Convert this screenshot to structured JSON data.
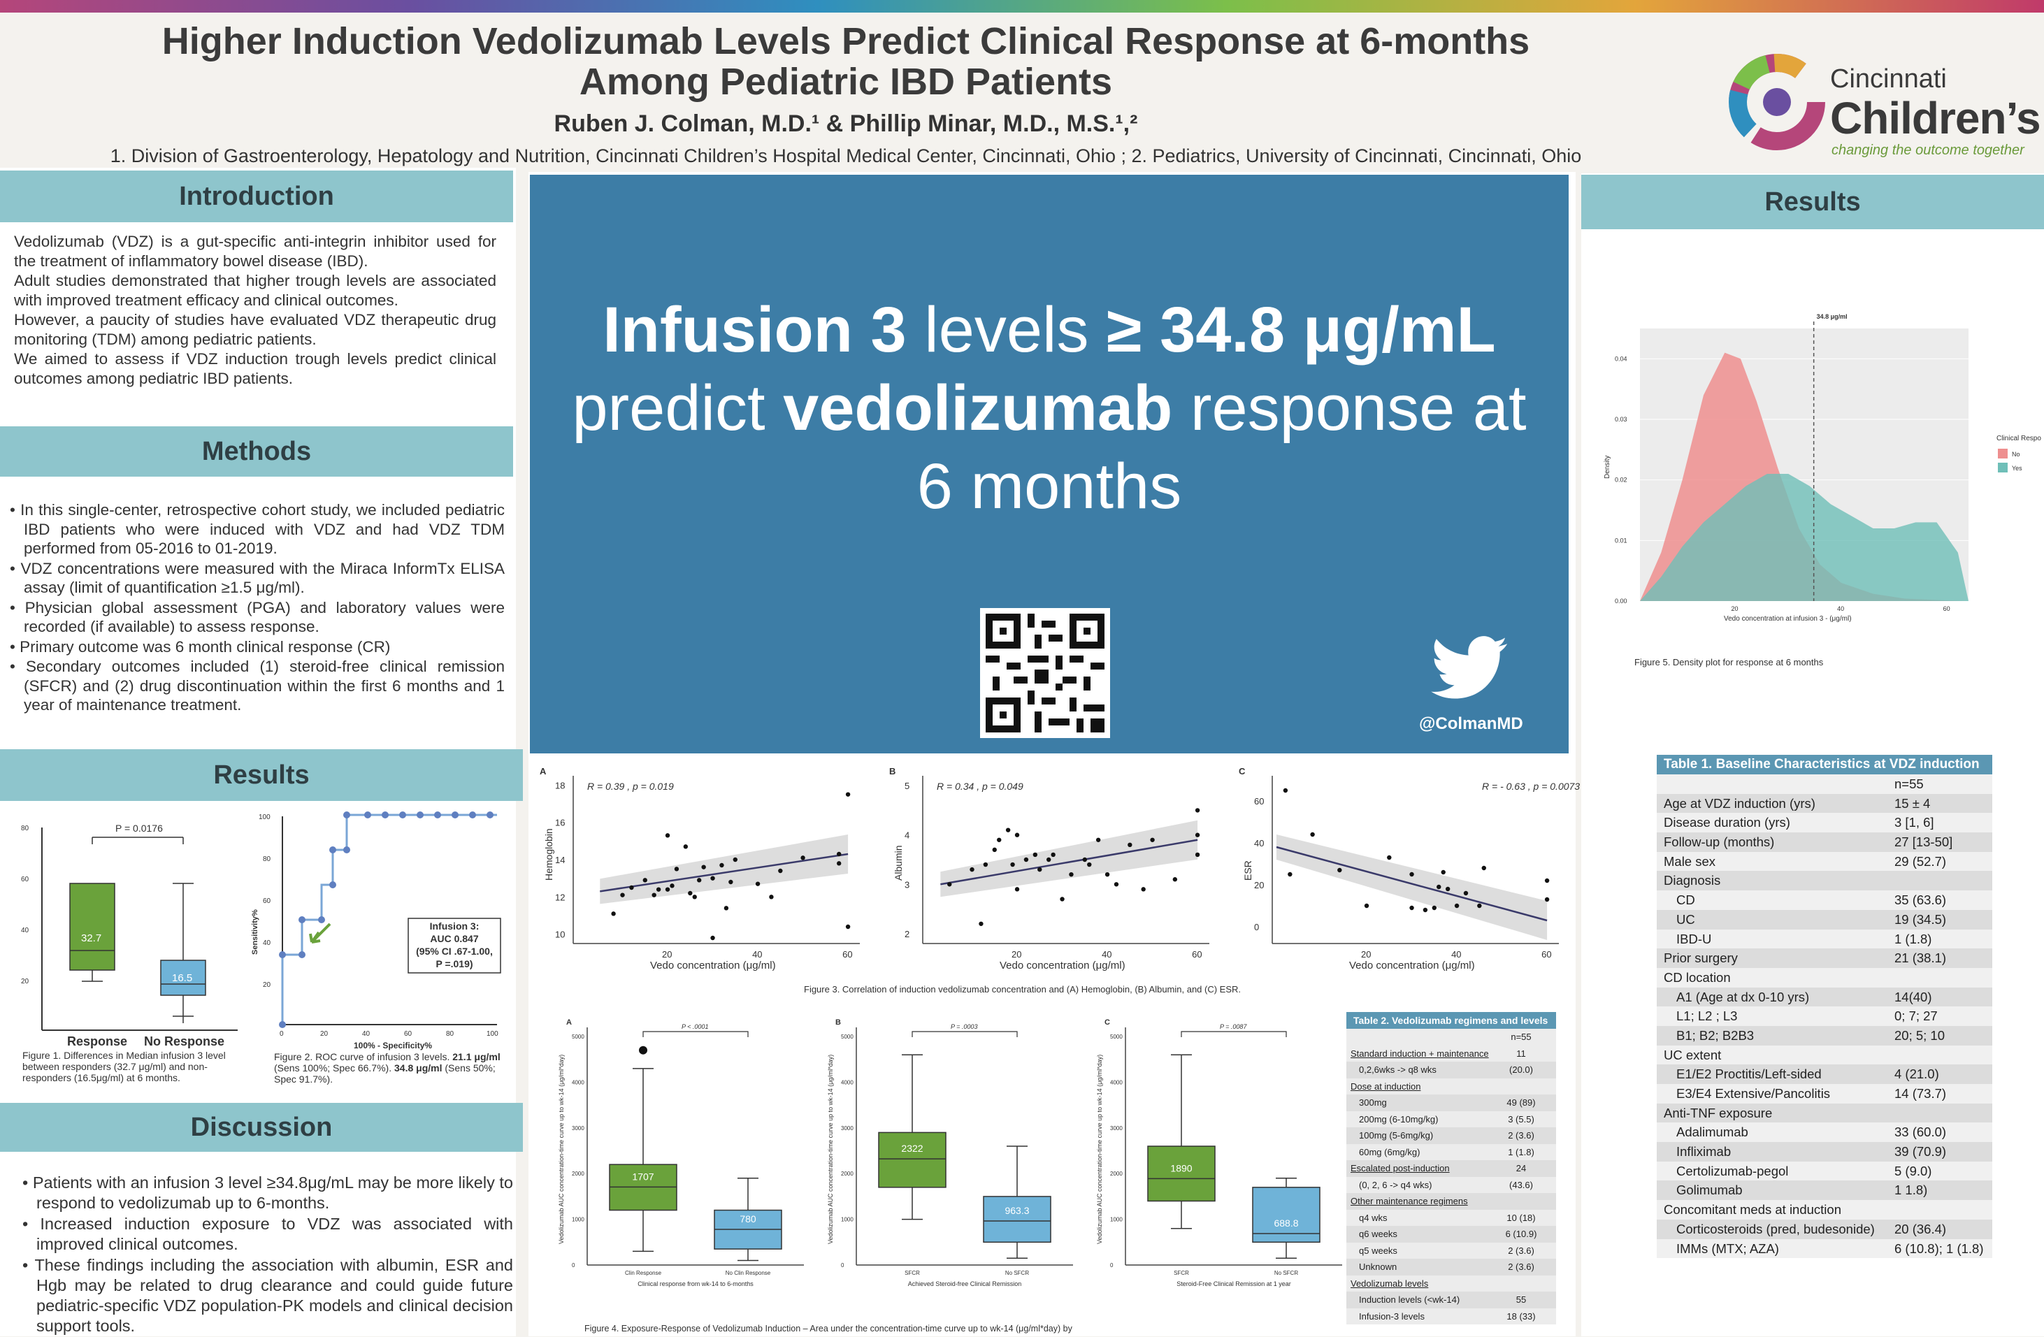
{
  "header": {
    "title_line1": "Higher Induction Vedolizumab Levels Predict Clinical Response at 6-months",
    "title_line2": "Among Pediatric IBD Patients",
    "authors": "Ruben J. Colman, M.D.¹ & Phillip Minar, M.D., M.S.¹,²",
    "affiliations": "1. Division of Gastroenterology, Hepatology and Nutrition, Cincinnati Children’s Hospital Medical Center, Cincinnati, Ohio ; 2. Pediatrics, University of Cincinnati, Cincinnati, Ohio",
    "logo_line1": "Cincinnati",
    "logo_line2": "Children’s",
    "logo_tagline": "changing the outcome together"
  },
  "introduction": {
    "heading": "Introduction",
    "p1": "Vedolizumab (VDZ) is a gut-specific anti-integrin inhibitor used for the treatment of inflammatory bowel disease (IBD).",
    "p2": "Adult studies demonstrated that higher trough levels are associated with improved treatment efficacy and clinical outcomes.",
    "p3": "However, a paucity of studies have evaluated VDZ therapeutic drug monitoring (TDM) among pediatric patients.",
    "p4": "We aimed to assess if VDZ induction trough levels predict clinical outcomes among pediatric IBD patients."
  },
  "methods": {
    "heading": "Methods",
    "items": [
      "In this single-center, retrospective cohort study, we included pediatric IBD patients who were induced with VDZ and had VDZ TDM performed from 05-2016 to 01-2019.",
      "VDZ concentrations were measured with the Miraca InformTx ELISA assay (limit of quantification ≥1.5 μg/ml).",
      "Physician global assessment (PGA) and laboratory values were recorded (if available) to assess response.",
      "Primary outcome was 6 month clinical response (CR)",
      "Secondary outcomes included (1) steroid-free clinical remission (SFCR) and (2) drug discontinuation within the first 6 months and 1 year of maintenance treatment."
    ]
  },
  "results_left": {
    "heading": "Results",
    "fig1": {
      "p_value": "P = 0.0176",
      "label_response": "Response",
      "label_no_response": "No Response",
      "median_response": "32.7",
      "median_no_response": "16.5",
      "caption": "Figure 1. Differences in Median infusion 3 level between responders (32.7 μg/ml) and non-responders (16.5μg/ml) at 6 months."
    },
    "fig2": {
      "xlabel": "100% - Specificity%",
      "ylabel": "Sensitivity%",
      "box_line1": "Infusion 3:",
      "box_line2": "AUC 0.847",
      "box_line3": "(95% CI .67-1.00,",
      "box_line4": "P =.019)",
      "caption_a": "Figure 2. ROC curve of infusion 3 levels.",
      "caption_b": "21.1 μg/ml",
      "caption_c": "(Sens 100%; Spec 66.7%).",
      "caption_d": "34.8 μg/ml",
      "caption_e": "(Sens 50%; Spec 91.7%)."
    }
  },
  "discussion": {
    "heading": "Discussion",
    "items": [
      "Patients with an infusion 3 level ≥34.8μg/mL may be more likely to respond to vedolizumab up to 6-months.",
      "Increased induction exposure to VDZ was associated with improved clinical outcomes.",
      "These findings including the association with albumin, ESR and Hgb may be related to drug clearance and could guide future pediatric-specific VDZ population-PK models and clinical decision support tools."
    ]
  },
  "highlight": {
    "line1_a": "Infusion 3",
    "line1_b": " levels ",
    "line1_c": "≥ 34.8 μg/mL",
    "line2_a": "predict ",
    "line2_b": "vedolizumab",
    "line2_c": " response at",
    "line3": "6 months",
    "twitter_handle": "@ColmanMD"
  },
  "figure3": {
    "caption": "Figure 3. Correlation of induction vedolizumab concentration and (A) Hemoglobin, (B) Albumin, and (C) ESR.",
    "xlabel": "Vedo concentration (μg/ml)",
    "panels": [
      {
        "letter": "A",
        "ylabel": "Hemoglobin",
        "stat": "R = 0.39 , p = 0.019",
        "yticks": [
          "18",
          "16",
          "14",
          "12",
          "10"
        ],
        "xticks": [
          "20",
          "40",
          "60"
        ]
      },
      {
        "letter": "B",
        "ylabel": "Albumin",
        "stat": "R = 0.34 , p = 0.049",
        "yticks": [
          "5",
          "4",
          "3",
          "2"
        ],
        "xticks": [
          "20",
          "40",
          "60"
        ]
      },
      {
        "letter": "C",
        "ylabel": "ESR",
        "stat": "R = - 0.63 , p = 0.0073",
        "yticks": [
          "60",
          "40",
          "20",
          "0"
        ],
        "xticks": [
          "20",
          "40",
          "60"
        ]
      }
    ]
  },
  "figure4": {
    "caption": "Figure 4. Exposure-Response of Vedolizumab Induction – Area under the concentration-time curve up to wk-14 (μg/ml*day) by",
    "ylabel": "Vedolizumab AUC concentration-time curve up to wk-14 (μg/ml*day)",
    "panels": [
      {
        "letter": "A",
        "p": "P < .0001",
        "med1": "1707",
        "med2": "780",
        "cat1": "Clin Response",
        "cat2": "No Clin Response",
        "xlabel": "Clinical response from wk-14 to 6-months"
      },
      {
        "letter": "B",
        "p": "P = .0003",
        "med1": "2322",
        "med2": "963.3",
        "cat1": "SFCR",
        "cat2": "No SFCR",
        "xlabel": "Achieved Steroid-free Clinical Remission"
      },
      {
        "letter": "C",
        "p": "P = .0087",
        "med1": "1890",
        "med2": "688.8",
        "cat1": "SFCR",
        "cat2": "No SFCR",
        "xlabel": "Steroid-Free Clinical Remission at 1 year"
      }
    ]
  },
  "table2": {
    "title": "Table 2. Vedolizumab regimens and levels",
    "n": "n=55",
    "rows": [
      [
        "Standard induction + maintenance",
        "11"
      ],
      [
        "0,2,6wks -> q8 wks",
        "(20.0)"
      ],
      [
        "Dose at induction",
        ""
      ],
      [
        "300mg",
        "49 (89)"
      ],
      [
        "200mg (6-10mg/kg)",
        "3 (5.5)"
      ],
      [
        "100mg (5-6mg/kg)",
        "2 (3.6)"
      ],
      [
        "60mg (6mg/kg)",
        "1 (1.8)"
      ],
      [
        "Escalated post-induction",
        "24"
      ],
      [
        "(0, 2, 6 -> q4 wks)",
        "(43.6)"
      ],
      [
        "Other maintenance regimens",
        ""
      ],
      [
        "q4 wks",
        "10 (18)"
      ],
      [
        "q6 weeks",
        "6 (10.9)"
      ],
      [
        "q5 weeks",
        "2 (3.6)"
      ],
      [
        "Unknown",
        "2 (3.6)"
      ],
      [
        "Vedolizumab levels",
        ""
      ],
      [
        "Induction levels (<wk-14)",
        "55"
      ],
      [
        "Infusion-3 levels",
        "18 (33)"
      ]
    ]
  },
  "results_right": {
    "heading": "Results",
    "fig5": {
      "caption": "Figure 5. Density plot for response at 6 months",
      "xlabel": "Vedo concentration at infusion 3 - (μg/ml)",
      "ylabel": "Density",
      "threshold_label": "34.8 μg/ml",
      "legend_title": "Clinical Respo",
      "legend_no": "No",
      "legend_yes": "Yes",
      "yticks": [
        "0.04",
        "0.03",
        "0.02",
        "0.01",
        "0.00"
      ],
      "xticks": [
        "20",
        "40",
        "60"
      ]
    },
    "table1": {
      "title": "Table 1. Baseline Characteristics at VDZ induction",
      "n": "n=55",
      "rows": [
        [
          "Age at VDZ induction (yrs)",
          "15 ± 4"
        ],
        [
          "Disease duration (yrs)",
          "3 [1, 6]"
        ],
        [
          "Follow-up (months)",
          "27 [13-50]"
        ],
        [
          "Male sex",
          "29 (52.7)"
        ],
        [
          "Diagnosis",
          ""
        ],
        [
          "CD",
          "35 (63.6)"
        ],
        [
          "UC",
          "19 (34.5)"
        ],
        [
          "IBD-U",
          "1 (1.8)"
        ],
        [
          "Prior surgery",
          "21 (38.1)"
        ],
        [
          "CD location",
          ""
        ],
        [
          "A1 (Age at dx 0-10 yrs)",
          "14(40)"
        ],
        [
          "L1; L2 ; L3",
          "0; 7; 27"
        ],
        [
          "B1; B2; B2B3",
          "20; 5; 10"
        ],
        [
          "UC extent",
          ""
        ],
        [
          "E1/E2 Proctitis/Left-sided",
          "4 (21.0)"
        ],
        [
          "E3/E4 Extensive/Pancolitis",
          "14 (73.7)"
        ],
        [
          "Anti-TNF exposure",
          ""
        ],
        [
          "Adalimumab",
          "33 (60.0)"
        ],
        [
          "Infliximab",
          "39 (70.9)"
        ],
        [
          "Certolizumab-pegol",
          "5 (9.0)"
        ],
        [
          "Golimumab",
          "1 1.8)"
        ],
        [
          "Concomitant meds at induction",
          ""
        ],
        [
          "Corticosteroids (pred, budesonide)",
          "20 (36.4)"
        ],
        [
          "IMMs (MTX; AZA)",
          "6 (10.8); 1 (1.8)"
        ]
      ]
    }
  },
  "colors": {
    "section_header": "#8ec5cc",
    "highlight_bg": "#3d7da6",
    "response_green": "#6aa23b",
    "no_response_blue": "#6fb3d8",
    "density_red": "#ee8f8f",
    "density_teal": "#6fbfb8"
  }
}
